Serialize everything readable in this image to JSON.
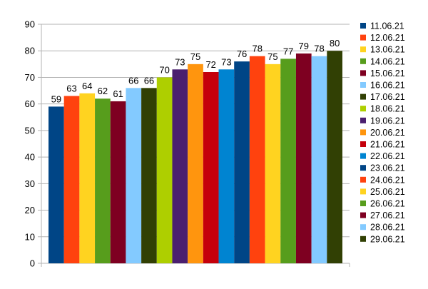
{
  "chart_data": {
    "type": "bar",
    "title": "",
    "xlabel": "",
    "ylabel": "",
    "ylim": [
      0,
      90
    ],
    "yticks": [
      0,
      10,
      20,
      30,
      40,
      50,
      60,
      70,
      80,
      90
    ],
    "grid": "y-major",
    "legend_position": "right",
    "show_data_labels": true,
    "series": [
      {
        "name": "11.06.21",
        "value": 59,
        "color": "#004586"
      },
      {
        "name": "12.06.21",
        "value": 63,
        "color": "#ff420e"
      },
      {
        "name": "13.06.21",
        "value": 64,
        "color": "#ffd320"
      },
      {
        "name": "14.06.21",
        "value": 62,
        "color": "#579d1c"
      },
      {
        "name": "15.06.21",
        "value": 61,
        "color": "#7e0021"
      },
      {
        "name": "16.06.21",
        "value": 66,
        "color": "#83caff"
      },
      {
        "name": "17.06.21",
        "value": 66,
        "color": "#314004"
      },
      {
        "name": "18.06.21",
        "value": 70,
        "color": "#aecf00"
      },
      {
        "name": "19.06.21",
        "value": 73,
        "color": "#4b1f6f"
      },
      {
        "name": "20.06.21",
        "value": 75,
        "color": "#ff950e"
      },
      {
        "name": "21.06.21",
        "value": 72,
        "color": "#c5000b"
      },
      {
        "name": "22.06.21",
        "value": 73,
        "color": "#0084d1"
      },
      {
        "name": "23.06.21",
        "value": 76,
        "color": "#004586"
      },
      {
        "name": "24.06.21",
        "value": 78,
        "color": "#ff420e"
      },
      {
        "name": "25.06.21",
        "value": 75,
        "color": "#ffd320"
      },
      {
        "name": "26.06.21",
        "value": 77,
        "color": "#579d1c"
      },
      {
        "name": "27.06.21",
        "value": 79,
        "color": "#7e0021"
      },
      {
        "name": "28.06.21",
        "value": 78,
        "color": "#83caff"
      },
      {
        "name": "29.06.21",
        "value": 80,
        "color": "#314004"
      }
    ]
  }
}
